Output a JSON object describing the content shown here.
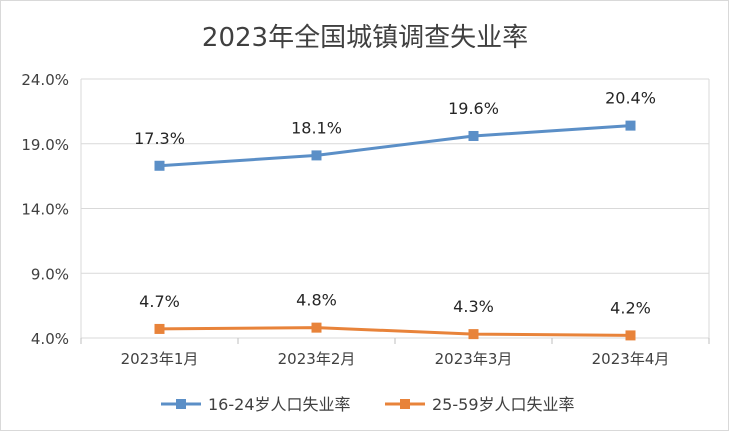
{
  "chart_data": {
    "type": "line",
    "title": "2023年全国城镇调查失业率",
    "categories": [
      "2023年1月",
      "2023年2月",
      "2023年3月",
      "2023年4月"
    ],
    "series": [
      {
        "name": "16-24岁人口失业率",
        "values": [
          17.3,
          18.1,
          19.6,
          20.4
        ],
        "labels": [
          "17.3%",
          "18.1%",
          "19.6%",
          "20.4%"
        ],
        "color": "#5b8fc7"
      },
      {
        "name": "25-59岁人口失业率",
        "values": [
          4.7,
          4.8,
          4.3,
          4.2
        ],
        "labels": [
          "4.7%",
          "4.8%",
          "4.3%",
          "4.2%"
        ],
        "color": "#e8833a"
      }
    ],
    "y_ticks": [
      "4.0%",
      "9.0%",
      "14.0%",
      "19.0%",
      "24.0%"
    ],
    "y_tick_values": [
      4,
      9,
      14,
      19,
      24
    ],
    "ylim": [
      4,
      24
    ],
    "grid": true,
    "legend_position": "bottom"
  }
}
